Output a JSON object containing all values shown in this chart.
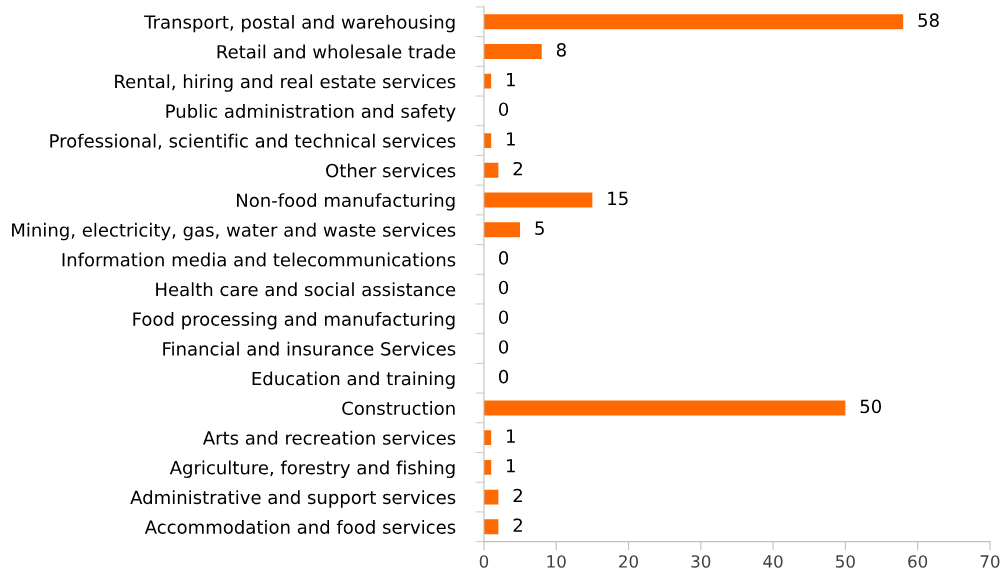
{
  "chart_data": {
    "type": "bar",
    "orientation": "horizontal",
    "categories": [
      "Transport, postal and warehousing",
      "Retail and wholesale trade",
      "Rental, hiring and real estate services",
      "Public administration and safety",
      "Professional, scientific and technical services",
      "Other services",
      "Non-food manufacturing",
      "Mining, electricity, gas, water and waste services",
      "Information media and telecommunications",
      "Health care and social assistance",
      "Food processing and manufacturing",
      "Financial and insurance Services",
      "Education and training",
      "Construction",
      "Arts and recreation services",
      "Agriculture, forestry and fishing",
      "Administrative and support services",
      "Accommodation and food services"
    ],
    "values": [
      58,
      8,
      1,
      0,
      1,
      2,
      15,
      5,
      0,
      0,
      0,
      0,
      0,
      50,
      1,
      1,
      2,
      2
    ],
    "color": "#ff6a00",
    "xlim": [
      0,
      70
    ],
    "xticks": [
      0,
      10,
      20,
      30,
      40,
      50,
      60,
      70
    ],
    "data_labels": true,
    "grid": false,
    "legend": false
  }
}
